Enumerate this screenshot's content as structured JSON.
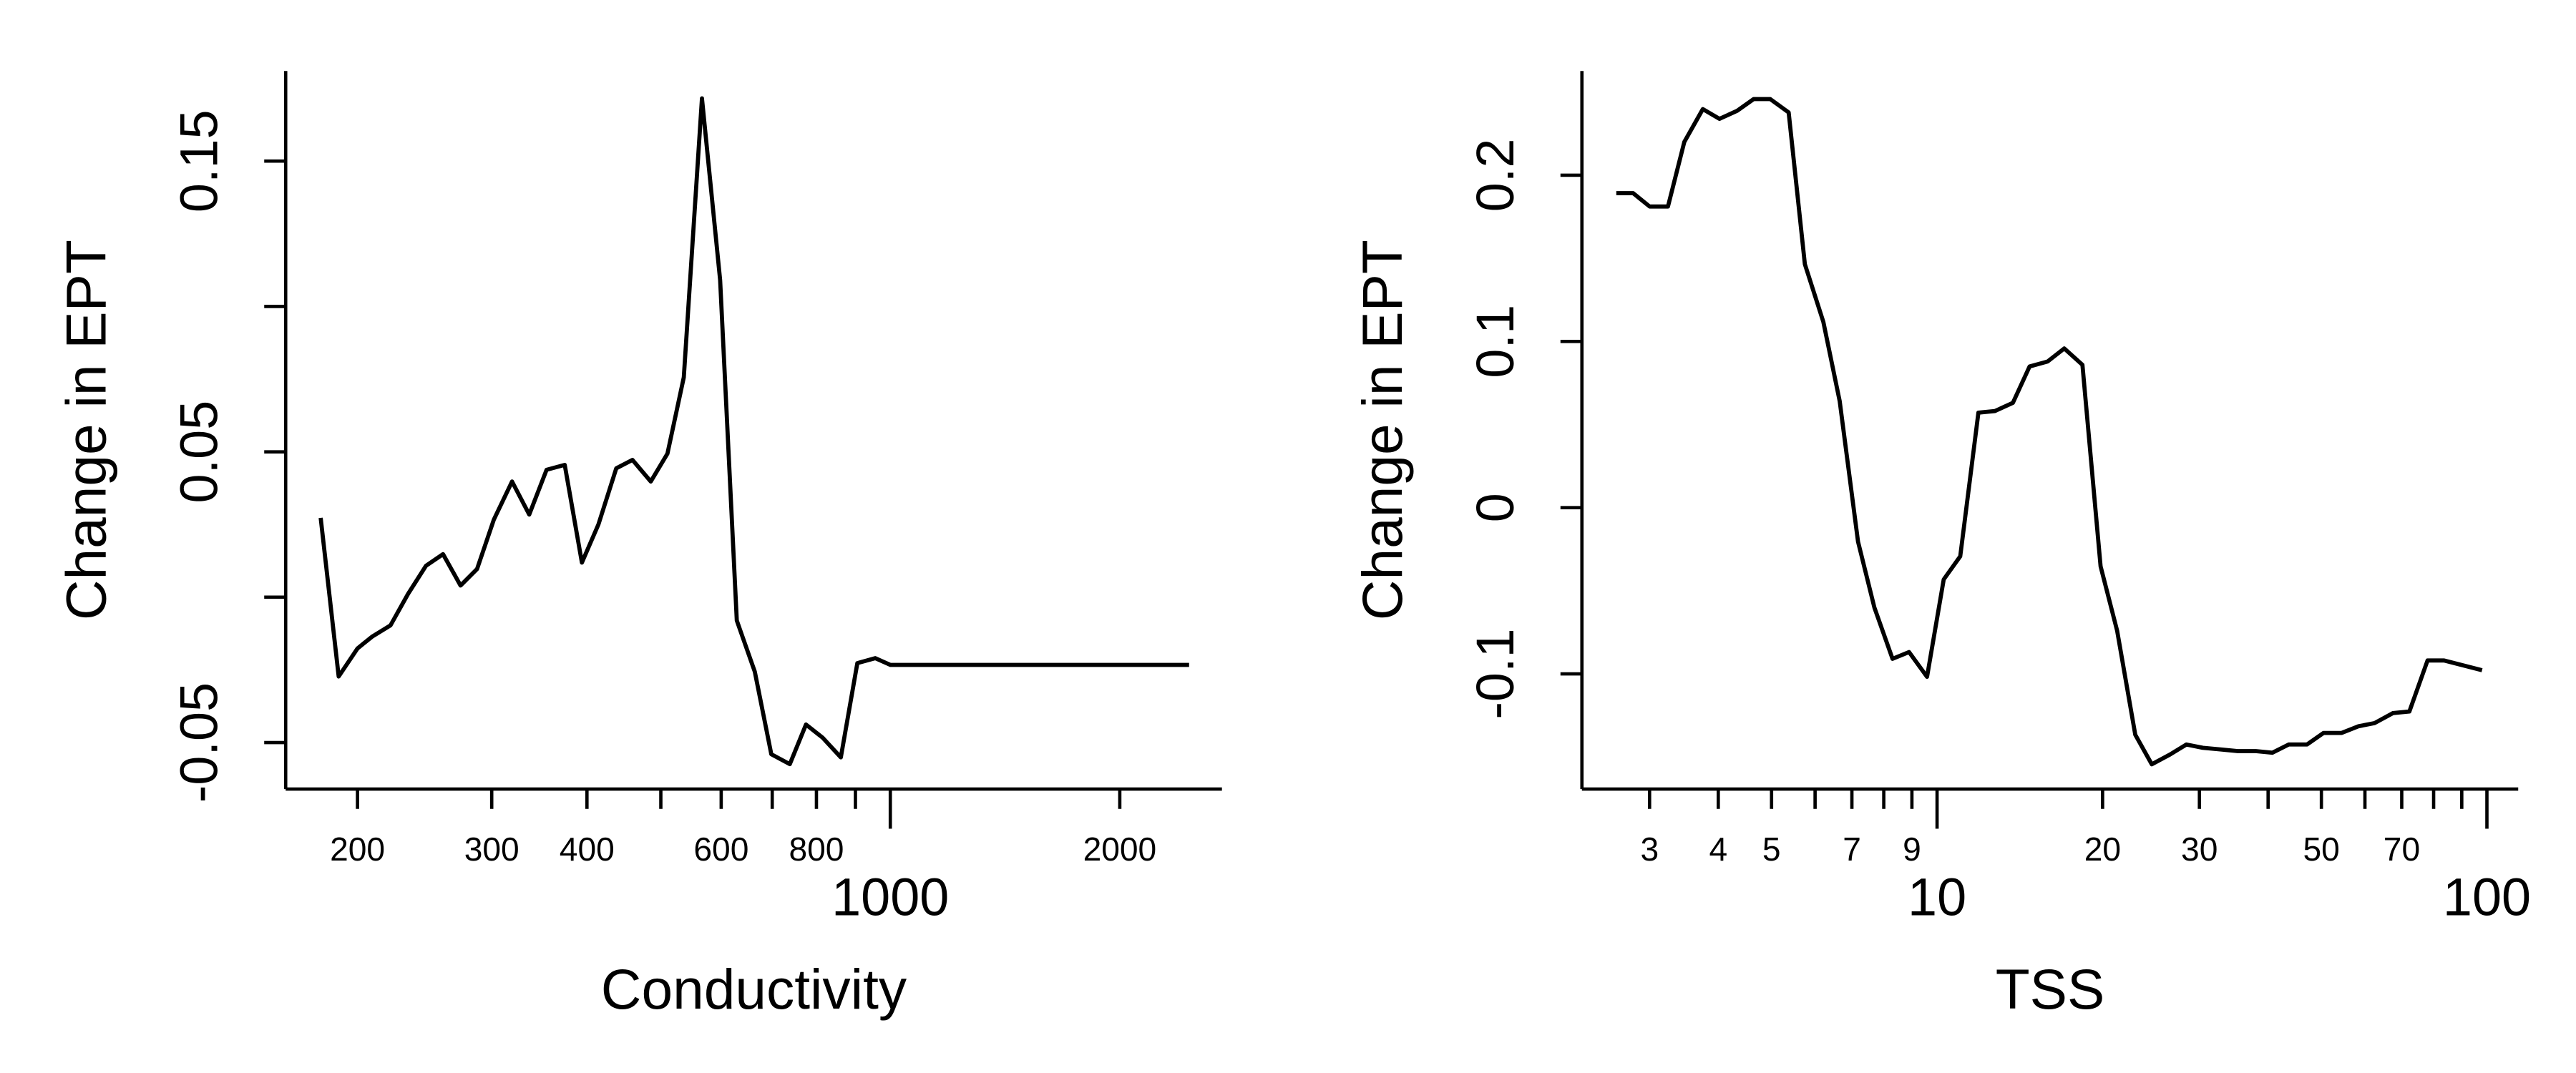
{
  "chart_data": [
    {
      "type": "line",
      "xlabel": "Conductivity",
      "ylabel": "Change in EPT",
      "color": "#000000",
      "xlog": true,
      "xlim": [
        161,
        2723
      ],
      "ylim": [
        -0.066,
        0.181
      ],
      "xticks": [
        200,
        300,
        400,
        600,
        800,
        1000,
        2000
      ],
      "xticks_minor": [
        500,
        700,
        900
      ],
      "yticks": [
        -0.05,
        0.05,
        0.15
      ],
      "yticks_minor": [
        0,
        0.1
      ],
      "x": [
        179,
        189,
        200,
        209,
        221,
        233,
        246,
        259,
        273,
        287,
        302,
        319,
        336,
        354,
        374,
        394,
        414,
        437,
        459,
        485,
        510,
        536,
        566,
        598,
        629,
        664,
        698,
        738,
        775,
        815,
        861,
        905,
        956,
        1000,
        2466
      ],
      "values": [
        0.0273,
        -0.0273,
        -0.0176,
        -0.0136,
        -0.0097,
        0.0011,
        0.0108,
        0.0148,
        0.004,
        0.0097,
        0.0267,
        0.0398,
        0.0284,
        0.0438,
        0.0455,
        0.0119,
        0.025,
        0.0443,
        0.0472,
        0.0398,
        0.0494,
        0.0756,
        0.1716,
        0.1091,
        -0.008,
        -0.0256,
        -0.054,
        -0.0574,
        -0.0438,
        -0.0483,
        -0.0551,
        -0.0227,
        -0.021,
        -0.0233,
        -0.0233
      ]
    },
    {
      "type": "line",
      "xlabel": "TSS",
      "ylabel": "Change in EPT",
      "color": "#000000",
      "xlog": true,
      "xlim": [
        2.26,
        114
      ],
      "ylim": [
        -0.1693,
        0.2627
      ],
      "xticks": [
        3,
        4,
        5,
        7,
        9,
        10,
        20,
        30,
        50,
        70,
        100
      ],
      "xticks_minor": [
        6,
        8,
        40,
        60,
        80,
        90
      ],
      "yticks": [
        -0.1,
        0.0,
        0.1,
        0.2
      ],
      "yticks_minor": [],
      "x": [
        2.61,
        2.8,
        3.0,
        3.24,
        3.47,
        3.75,
        4.02,
        4.33,
        4.64,
        4.97,
        5.37,
        5.75,
        6.21,
        6.65,
        7.18,
        7.69,
        8.3,
        8.89,
        9.59,
        10.28,
        11.02,
        11.89,
        12.74,
        13.74,
        14.73,
        15.89,
        17.03,
        18.38,
        19.83,
        21.25,
        22.93,
        24.57,
        26.51,
        28.41,
        30.44,
        32.85,
        35.2,
        37.98,
        40.7,
        43.61,
        47.07,
        50.44,
        54.43,
        58.32,
        62.5,
        67.44,
        72.27,
        77.98,
        83.56,
        97.95
      ],
      "values": [
        0.1892,
        0.1892,
        0.1812,
        0.1812,
        0.22,
        0.2398,
        0.2339,
        0.2388,
        0.2458,
        0.2458,
        0.2378,
        0.1465,
        0.1117,
        0.0641,
        -0.0204,
        -0.0601,
        -0.0909,
        -0.0869,
        -0.1018,
        -0.0432,
        -0.0293,
        0.0571,
        0.0581,
        0.0631,
        0.0849,
        0.0879,
        0.0958,
        0.0859,
        -0.0353,
        -0.074,
        -0.1366,
        -0.1544,
        -0.1485,
        -0.1425,
        -0.1445,
        -0.1455,
        -0.1465,
        -0.1465,
        -0.1475,
        -0.1425,
        -0.1425,
        -0.1355,
        -0.1355,
        -0.1316,
        -0.1296,
        -0.1236,
        -0.1226,
        -0.0919,
        -0.0919,
        -0.0978
      ]
    }
  ]
}
